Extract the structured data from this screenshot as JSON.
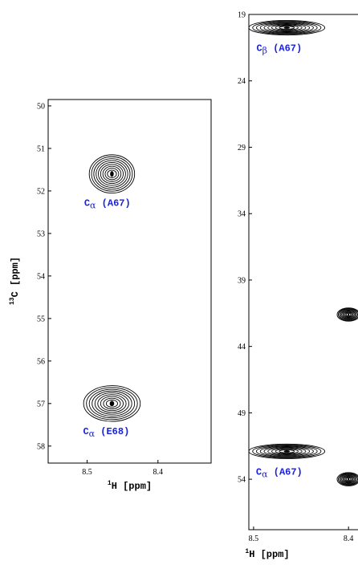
{
  "chart_data": [
    {
      "type": "contour",
      "xlabel": "1H [ppm]",
      "ylabel": "13C [ppm]",
      "xticks": [
        8.5,
        8.4
      ],
      "yticks": [
        50,
        51,
        52,
        53,
        54,
        55,
        56,
        57,
        58
      ],
      "xlim": [
        8.555,
        8.325
      ],
      "ylim": [
        49.85,
        58.4
      ],
      "peaks": [
        {
          "label_main": "C",
          "label_sub": "α",
          "label_res": " (A67)",
          "x": 8.465,
          "y": 51.6,
          "rx": 0.032,
          "ry": 0.45
        },
        {
          "label_main": "C",
          "label_sub": "α",
          "label_res": " (E68)",
          "x": 8.465,
          "y": 57.0,
          "rx": 0.04,
          "ry": 0.42
        }
      ]
    },
    {
      "type": "contour",
      "xlabel": "1H [ppm]",
      "xticks": [
        8.5,
        8.4
      ],
      "yticks": [
        19,
        24,
        29,
        34,
        39,
        44,
        49,
        54
      ],
      "xlim": [
        8.505,
        8.39
      ],
      "ylim": [
        19.0,
        57.8
      ],
      "peaks": [
        {
          "label_main": "C",
          "label_sub": "β",
          "label_res": " (A67)",
          "x": 8.465,
          "y": 20.0,
          "rx": 0.04,
          "ry": 0.55
        },
        {
          "label_main": "C",
          "label_sub": "α",
          "label_res": " (A67)",
          "x": 8.465,
          "y": 51.9,
          "rx": 0.04,
          "ry": 0.55
        },
        {
          "x": 8.4,
          "y": 41.6,
          "rx": 0.012,
          "ry": 0.5
        },
        {
          "x": 8.4,
          "y": 54.0,
          "rx": 0.012,
          "ry": 0.5
        }
      ]
    }
  ]
}
